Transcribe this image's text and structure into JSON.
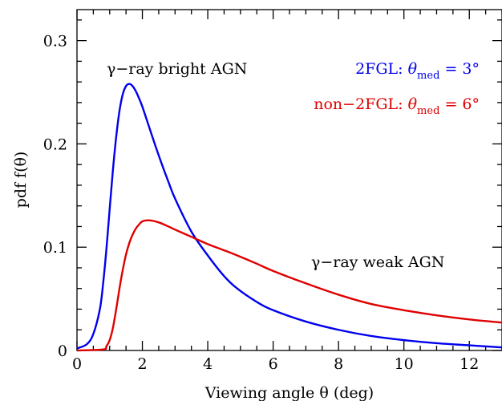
{
  "chart_data": {
    "type": "line",
    "title": "",
    "xlabel": "Viewing angle θ (deg)",
    "ylabel": "pdf f(θ)",
    "xlim": [
      0,
      13
    ],
    "ylim": [
      0,
      0.33
    ],
    "xticks": [
      0,
      2,
      4,
      6,
      8,
      10,
      12
    ],
    "xtick_labels": [
      "0",
      "2",
      "4",
      "6",
      "8",
      "10",
      "12"
    ],
    "yticks": [
      0,
      0.1,
      0.2,
      0.3
    ],
    "ytick_labels": [
      "0",
      "0.1",
      "0.2",
      "0.3"
    ],
    "grid": false,
    "series": [
      {
        "name": "γ-ray bright AGN",
        "color": "#0000ee",
        "x": [
          0,
          0.3,
          0.5,
          0.7,
          0.8,
          0.9,
          1.0,
          1.1,
          1.2,
          1.3,
          1.4,
          1.5,
          1.6,
          1.7,
          1.8,
          1.9,
          2.0,
          2.2,
          2.4,
          2.6,
          2.8,
          3.0,
          3.5,
          4.0,
          4.5,
          4.9,
          5.5,
          6.0,
          7.0,
          8.0,
          9.0,
          10.0,
          11.0,
          12.0,
          13.0
        ],
        "y": [
          0.002,
          0.006,
          0.016,
          0.04,
          0.065,
          0.098,
          0.137,
          0.175,
          0.207,
          0.232,
          0.248,
          0.256,
          0.258,
          0.256,
          0.251,
          0.244,
          0.236,
          0.217,
          0.198,
          0.18,
          0.163,
          0.147,
          0.115,
          0.092,
          0.072,
          0.06,
          0.047,
          0.039,
          0.028,
          0.02,
          0.014,
          0.01,
          0.007,
          0.005,
          0.003
        ]
      },
      {
        "name": "γ-ray weak AGN",
        "color": "#e00000",
        "x": [
          0,
          0.8,
          0.9,
          1.0,
          1.1,
          1.2,
          1.3,
          1.4,
          1.5,
          1.6,
          1.7,
          1.8,
          1.9,
          2.0,
          2.2,
          2.5,
          2.8,
          3.0,
          3.5,
          4.0,
          4.5,
          4.9,
          5.5,
          6.0,
          7.0,
          8.0,
          9.0,
          10.0,
          11.0,
          12.0,
          13.0
        ],
        "y": [
          0,
          0.001,
          0.004,
          0.01,
          0.022,
          0.04,
          0.06,
          0.078,
          0.093,
          0.104,
          0.112,
          0.118,
          0.122,
          0.125,
          0.126,
          0.124,
          0.12,
          0.117,
          0.11,
          0.103,
          0.097,
          0.092,
          0.084,
          0.077,
          0.065,
          0.054,
          0.045,
          0.039,
          0.034,
          0.03,
          0.027
        ]
      }
    ],
    "annotations": {
      "bright_label": "γ−ray bright AGN",
      "weak_label": "γ−ray weak AGN",
      "legend_2fgl_prefix": "2FGL:",
      "legend_2fgl_symbol": "θ",
      "legend_2fgl_sub": "med",
      "legend_2fgl_value": "= 3°",
      "legend_non2fgl_prefix": "non−2FGL:",
      "legend_non2fgl_symbol": "θ",
      "legend_non2fgl_sub": "med",
      "legend_non2fgl_value": "= 6°",
      "color_2fgl": "#0000ee",
      "color_non2fgl": "#e00000"
    }
  }
}
